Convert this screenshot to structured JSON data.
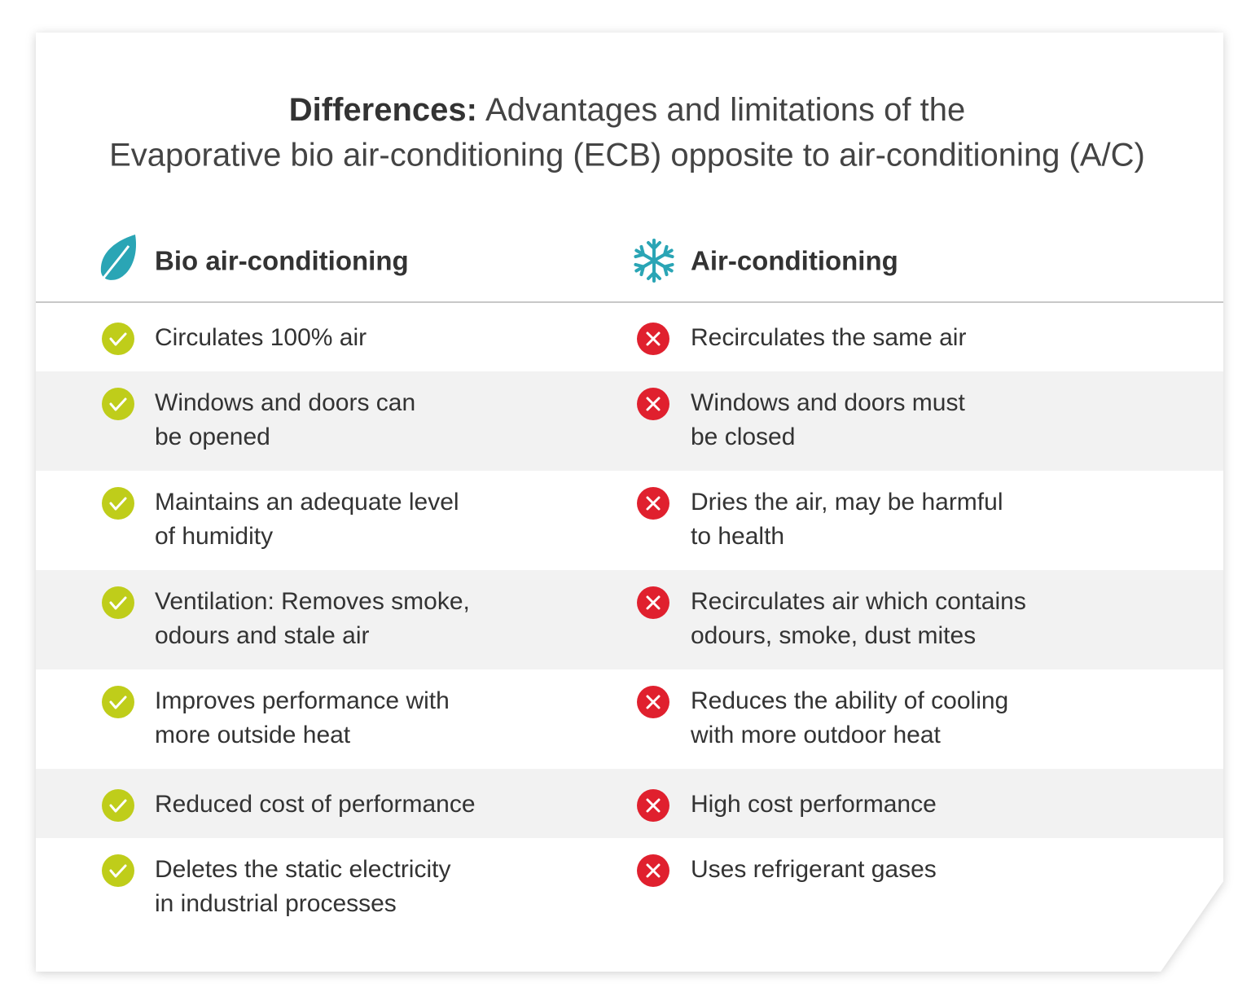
{
  "header": {
    "title_bold": "Differences:",
    "title_rest": "Advantages and limitations of the",
    "subtitle": "Evaporative bio air-conditioning (ECB) opposite to air-conditioning (A/C)"
  },
  "table": {
    "columns": [
      "Bio air-conditioning",
      "Air-conditioning"
    ],
    "rows": [
      {
        "left": [
          "Circulates 100% air"
        ],
        "right": [
          "Recirculates the same air"
        ]
      },
      {
        "left": [
          "Windows and doors can",
          "be opened"
        ],
        "right": [
          "Windows and doors must",
          "be closed"
        ]
      },
      {
        "left": [
          "Maintains an adequate level",
          "of humidity"
        ],
        "right": [
          "Dries the air, may be harmful",
          "to health"
        ]
      },
      {
        "left": [
          "Ventilation: Removes smoke,",
          "odours and stale air"
        ],
        "right": [
          "Recirculates air which contains",
          "odours, smoke, dust mites"
        ]
      },
      {
        "left": [
          "Improves performance with",
          "more outside heat"
        ],
        "right": [
          "Reduces the ability of cooling",
          "with more outdoor heat"
        ]
      },
      {
        "left": [
          "Reduced cost of performance"
        ],
        "right": [
          "High cost performance"
        ]
      },
      {
        "left": [
          "Deletes the static electricity",
          "in industrial processes"
        ],
        "right": [
          "Uses refrigerant gases"
        ]
      }
    ]
  }
}
